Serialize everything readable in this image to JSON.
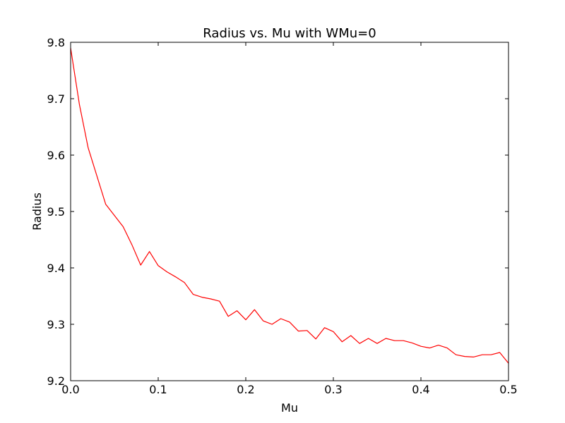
{
  "chart_data": {
    "type": "line",
    "title": "Radius vs. Mu with WMu=0",
    "xlabel": "Mu",
    "ylabel": "Radius",
    "xlim": [
      0.0,
      0.5
    ],
    "ylim": [
      9.2,
      9.8
    ],
    "xticks": [
      0.0,
      0.1,
      0.2,
      0.3,
      0.4,
      0.5
    ],
    "yticks": [
      9.2,
      9.3,
      9.4,
      9.5,
      9.6,
      9.7,
      9.8
    ],
    "xtick_labels": [
      "0.0",
      "0.1",
      "0.2",
      "0.3",
      "0.4",
      "0.5"
    ],
    "ytick_labels": [
      "9.2",
      "9.3",
      "9.4",
      "9.5",
      "9.6",
      "9.7",
      "9.8"
    ],
    "grid": false,
    "series": [
      {
        "color": "#ff0000",
        "x": [
          0.0,
          0.01,
          0.02,
          0.03,
          0.04,
          0.05,
          0.06,
          0.07,
          0.08,
          0.09,
          0.1,
          0.11,
          0.12,
          0.13,
          0.14,
          0.15,
          0.16,
          0.17,
          0.18,
          0.19,
          0.2,
          0.21,
          0.22,
          0.23,
          0.24,
          0.25,
          0.26,
          0.27,
          0.28,
          0.29,
          0.3,
          0.31,
          0.32,
          0.33,
          0.34,
          0.35,
          0.36,
          0.37,
          0.38,
          0.39,
          0.4,
          0.41,
          0.42,
          0.43,
          0.44,
          0.45,
          0.46,
          0.47,
          0.48,
          0.49,
          0.5
        ],
        "y": [
          9.79,
          9.69,
          9.613,
          9.563,
          9.513,
          9.493,
          9.473,
          9.441,
          9.405,
          9.429,
          9.404,
          9.393,
          9.384,
          9.374,
          9.353,
          9.348,
          9.345,
          9.341,
          9.314,
          9.324,
          9.308,
          9.326,
          9.306,
          9.3,
          9.31,
          9.304,
          9.288,
          9.289,
          9.274,
          9.294,
          9.287,
          9.269,
          9.28,
          9.266,
          9.275,
          9.266,
          9.275,
          9.271,
          9.271,
          9.267,
          9.261,
          9.258,
          9.263,
          9.258,
          9.246,
          9.243,
          9.242,
          9.246,
          9.246,
          9.25,
          9.231
        ]
      }
    ]
  }
}
